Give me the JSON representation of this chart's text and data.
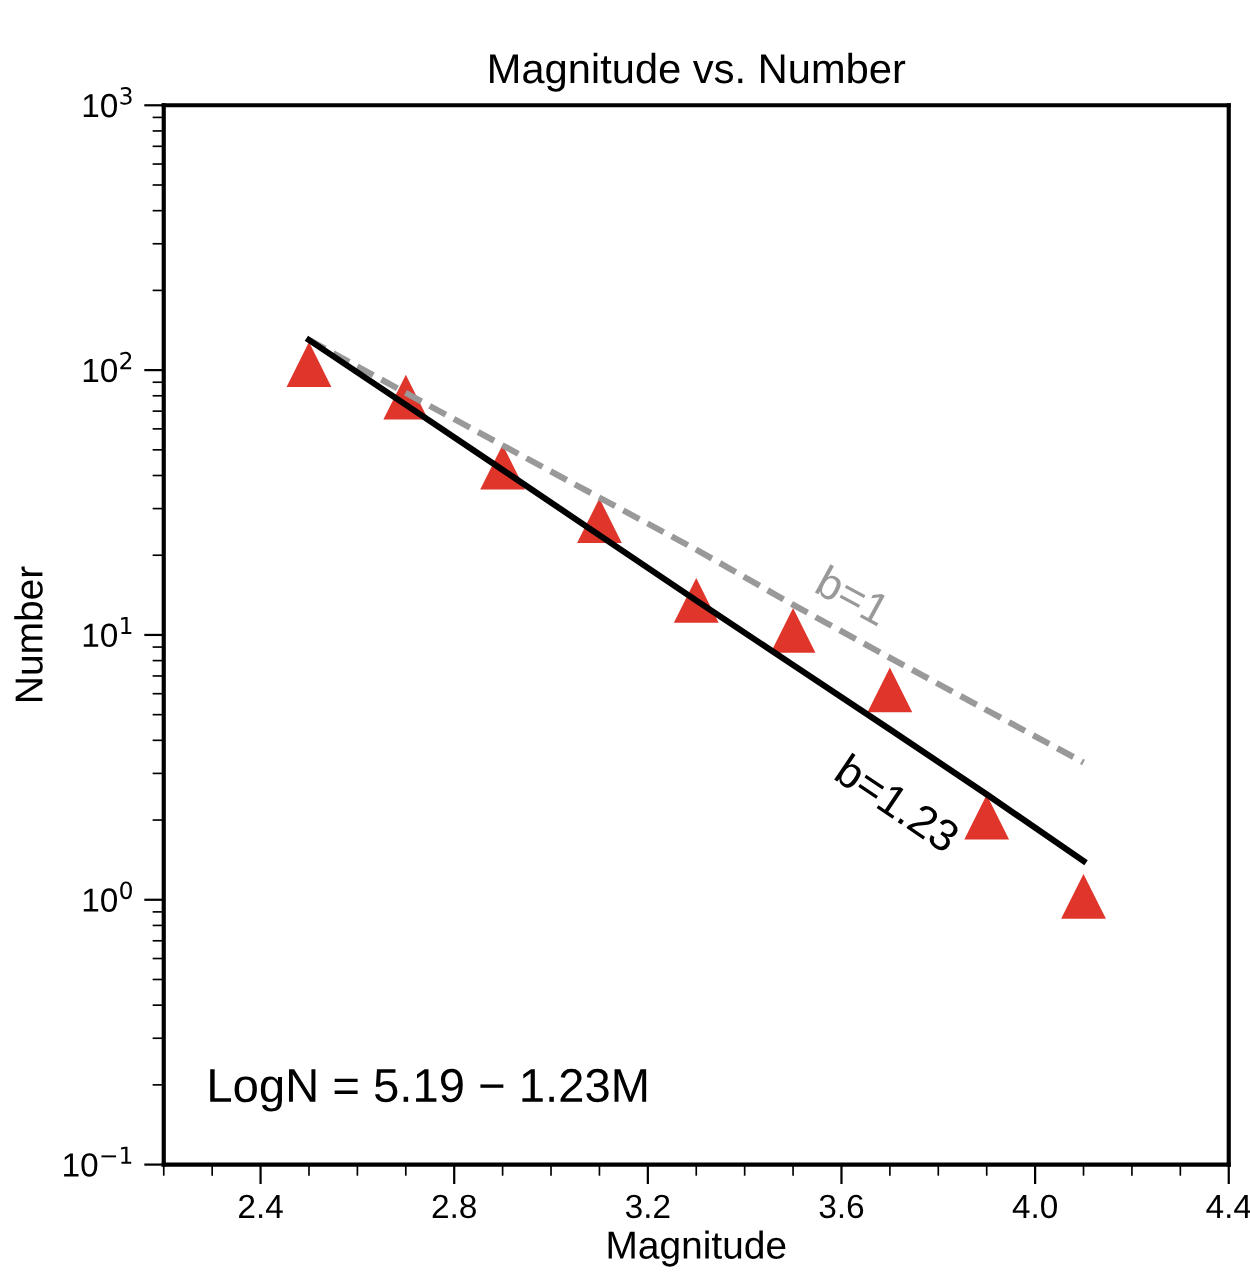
{
  "chart_data": {
    "type": "scatter",
    "title": "Magnitude vs. Number",
    "xlabel": "Magnitude",
    "ylabel": "Number",
    "log": "y",
    "grid": false,
    "legend": false,
    "x": [
      2.5,
      2.7,
      2.9,
      3.1,
      3.3,
      3.5,
      3.7,
      3.9,
      4.1
    ],
    "series": [
      {
        "color": "#e0352b",
        "marker": "triangle",
        "values": [
          105,
          79,
          43,
          27,
          13.5,
          10.4,
          6.2,
          2.05,
          1.03
        ]
      },
      {
        "type": "line",
        "color": "#999999",
        "line_style": "dashed",
        "marker": "none",
        "values": [
          130,
          82,
          52,
          33,
          21,
          13,
          8.2,
          5.2,
          3.3
        ]
      },
      {
        "type": "line",
        "color": "#000000",
        "line_style": "solid",
        "marker": "none",
        "values": [
          130,
          74,
          42,
          23.8,
          13.5,
          7.7,
          4.4,
          2.5,
          1.4
        ]
      }
    ],
    "xlim": [
      2.2,
      4.4
    ],
    "xticks": [
      2.4,
      2.8,
      3.2,
      3.6,
      {
        "value": 4.0,
        "label": "4.0"
      },
      4.4
    ],
    "ylim": [
      0.1,
      1000
    ],
    "yticks": [
      {
        "value": 0.1,
        "label": "10$^{−1}$"
      },
      {
        "value": 1,
        "label": "10$^{0}$"
      },
      {
        "value": 10,
        "label": "10$^{1}$"
      },
      {
        "value": 100,
        "label": "10$^{2}$"
      },
      {
        "value": 1000,
        "label": "10$^{3}$"
      }
    ],
    "annotations": [
      "b=1",
      "b=1.23",
      "LogN = 5.19 − 1.23M"
    ]
  }
}
